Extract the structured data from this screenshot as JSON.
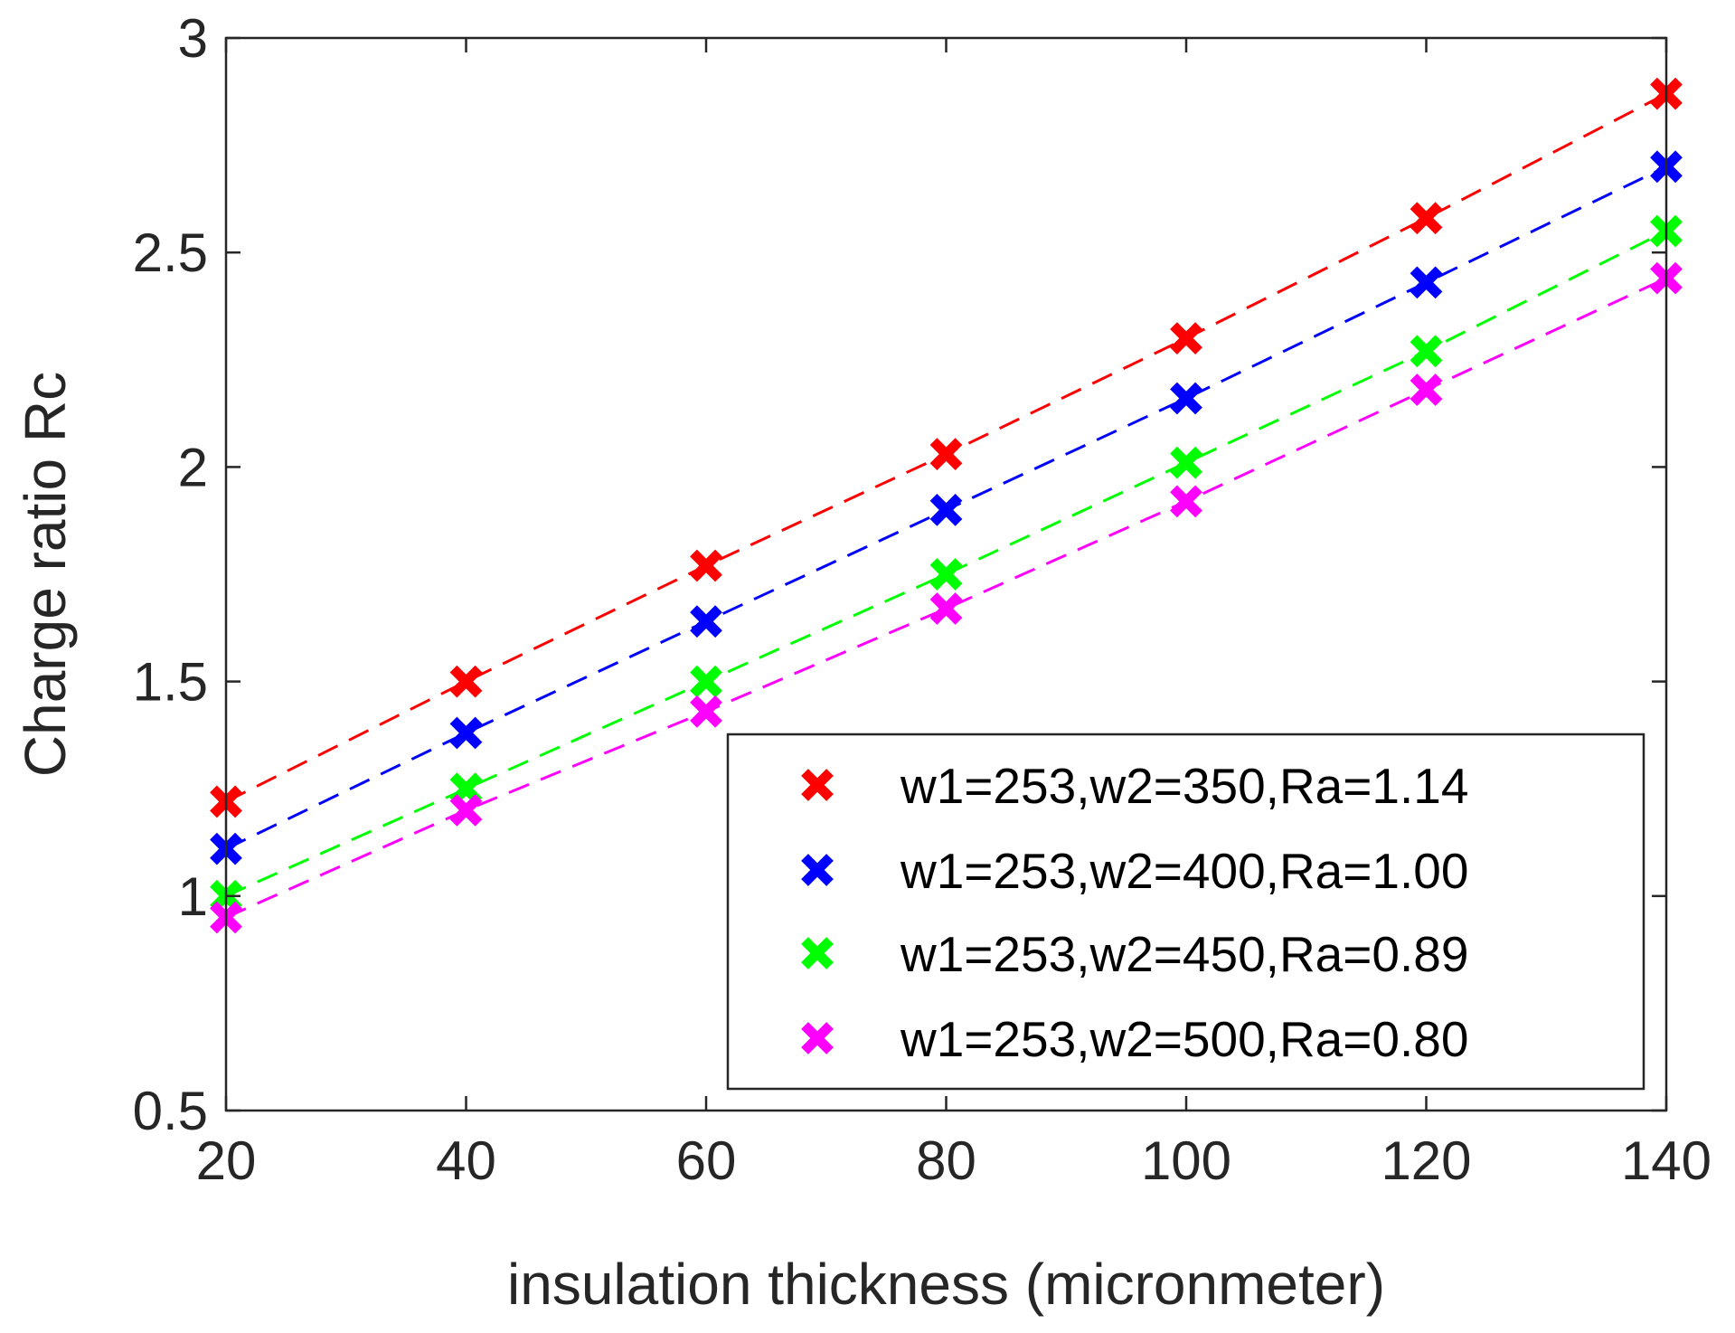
{
  "chart_data": {
    "type": "line",
    "title": "",
    "xlabel": "insulation thickness (micronmeter)",
    "ylabel": "Charge ratio Rc",
    "xlim": [
      20,
      140
    ],
    "ylim": [
      0.5,
      3
    ],
    "xticks": [
      20,
      40,
      60,
      80,
      100,
      120,
      140
    ],
    "yticks": [
      0.5,
      1,
      1.5,
      2,
      2.5,
      3
    ],
    "xtick_labels": [
      "20",
      "40",
      "60",
      "80",
      "100",
      "120",
      "140"
    ],
    "ytick_labels": [
      "0.5",
      "1",
      "1.5",
      "2",
      "2.5",
      "3"
    ],
    "grid": false,
    "legend_position": "bottom-right",
    "x": [
      20,
      40,
      60,
      80,
      100,
      120,
      140
    ],
    "series": [
      {
        "name": "w1=253,w2=350,Ra=1.14",
        "color": "#ff0000",
        "marker": "x",
        "line_style": "dashed",
        "values": [
          1.22,
          1.5,
          1.77,
          2.03,
          2.3,
          2.58,
          2.87
        ]
      },
      {
        "name": "w1=253,w2=400,Ra=1.00",
        "color": "#0000ff",
        "marker": "x",
        "line_style": "dashed",
        "values": [
          1.11,
          1.38,
          1.64,
          1.9,
          2.16,
          2.43,
          2.7
        ]
      },
      {
        "name": "w1=253,w2=450,Ra=0.89",
        "color": "#00ff00",
        "marker": "x",
        "line_style": "dashed",
        "values": [
          1.0,
          1.25,
          1.5,
          1.75,
          2.01,
          2.27,
          2.55
        ]
      },
      {
        "name": "w1=253,w2=500,Ra=0.80",
        "color": "#ff00ff",
        "marker": "x",
        "line_style": "dashed",
        "values": [
          0.95,
          1.2,
          1.43,
          1.67,
          1.92,
          2.18,
          2.44
        ]
      }
    ]
  }
}
